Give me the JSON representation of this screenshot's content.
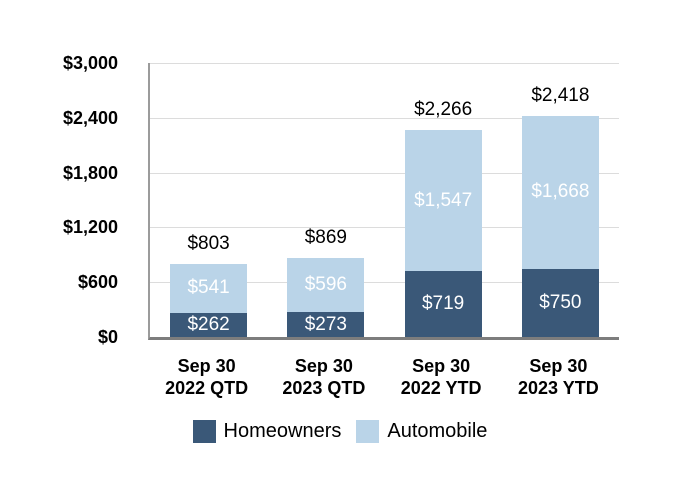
{
  "chart_data": {
    "type": "bar",
    "stacked": true,
    "title": "",
    "xlabel": "",
    "ylabel": "",
    "grid": true,
    "legend_position": "bottom-center",
    "categories": [
      {
        "line1": "Sep 30",
        "line2": "2022 QTD"
      },
      {
        "line1": "Sep 30",
        "line2": "2023 QTD"
      },
      {
        "line1": "Sep 30",
        "line2": "2022 YTD"
      },
      {
        "line1": "Sep 30",
        "line2": "2023 YTD"
      }
    ],
    "series": [
      {
        "name": "Homeowners",
        "color": "#3A5878",
        "values": [
          262,
          273,
          719,
          750
        ],
        "value_labels": [
          "$262",
          "$273",
          "$719",
          "$750"
        ]
      },
      {
        "name": "Automobile",
        "color": "#BAD4E8",
        "values": [
          541,
          596,
          1547,
          1668
        ],
        "value_labels": [
          "$541",
          "$596",
          "$1,547",
          "$1,668"
        ]
      }
    ],
    "totals": [
      803,
      869,
      2266,
      2418
    ],
    "total_labels": [
      "$803",
      "$869",
      "$2,266",
      "$2,418"
    ],
    "y_axis": {
      "min": 0,
      "max": 3000,
      "tick_step": 600,
      "ticks": [
        {
          "value": 0,
          "label": "$0"
        },
        {
          "value": 600,
          "label": "$600"
        },
        {
          "value": 1200,
          "label": "$1,200"
        },
        {
          "value": 1800,
          "label": "$1,800"
        },
        {
          "value": 2400,
          "label": "$2,400"
        },
        {
          "value": 3000,
          "label": "$3,000"
        }
      ]
    },
    "legend": [
      {
        "label": "Homeowners",
        "color": "#3A5878"
      },
      {
        "label": "Automobile",
        "color": "#BAD4E8"
      }
    ]
  },
  "colors": {
    "background": "#FFFFFF",
    "gridline": "#DCDCDC",
    "axis_line": "#9B9B9B",
    "baseline": "#7D7D7D",
    "bar_value_text": "#FFFFFF",
    "axis_text": "#000000"
  }
}
